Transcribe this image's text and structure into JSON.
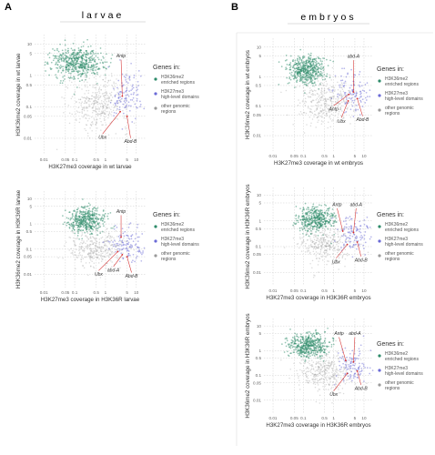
{
  "panels": [
    {
      "letter": "A",
      "title": "larvae"
    },
    {
      "letter": "B",
      "title": "embryos"
    }
  ],
  "legend": {
    "title": "Genes in:",
    "items": [
      {
        "label_lines": [
          "H3K36me2",
          "enriched regions"
        ],
        "color": "#2e8b6a"
      },
      {
        "label_lines": [
          "H3K27me3",
          "high-level domains"
        ],
        "color": "#6b6bd6"
      },
      {
        "label_lines": [
          "other genomic",
          "regions"
        ],
        "color": "#9a9a9a"
      }
    ]
  },
  "chart_data": [
    {
      "type": "scatter",
      "panel": "A",
      "plot": "larvae-wt",
      "xlabel": "H3K27me3 coverage in wt larvae",
      "ylabel": "H3K36me2 coverage in wt larvae",
      "log_scale": true,
      "grid": true,
      "legend_position": "right",
      "x_ticks": [
        "0.01",
        "0.05",
        "0.1",
        "0.5",
        "1",
        "5",
        "10"
      ],
      "y_ticks": [
        "10",
        "5",
        "1",
        "0.5",
        "0.1",
        "0.05",
        "0.01"
      ],
      "xlim": [
        0.005,
        20
      ],
      "ylim": [
        0.003,
        20
      ],
      "series": [
        {
          "name": "H3K36me2 enriched regions",
          "color": "#2e8b6a",
          "center": [
            0.12,
            2.6
          ],
          "spread": [
            0.42,
            0.25
          ],
          "count": 520
        },
        {
          "name": "H3K27me3 high-level domains",
          "color": "#6b6bd6",
          "center": [
            4.5,
            0.22
          ],
          "spread": [
            0.28,
            0.38
          ],
          "count": 110
        },
        {
          "name": "other genomic regions",
          "color": "#9a9a9a",
          "center": [
            0.6,
            0.13
          ],
          "spread": [
            0.5,
            0.42
          ],
          "count": 380
        }
      ],
      "annotations": [
        {
          "text": "Antp",
          "x": 3.5,
          "y": 0.22,
          "label_x": 3.2,
          "label_y": 3.5
        },
        {
          "text": "Ubx",
          "x": 3.0,
          "y": 0.07,
          "label_x": 0.8,
          "label_y": 0.012
        },
        {
          "text": "Abd-B",
          "x": 5.0,
          "y": 0.05,
          "label_x": 6.5,
          "label_y": 0.009
        }
      ]
    },
    {
      "type": "scatter",
      "panel": "A",
      "plot": "larvae-H3",
      "xlabel": "H3K27me3 coverage in H3K36R larvae",
      "ylabel": "H3K36me2 coverage in H3K36R larvae",
      "log_scale": true,
      "grid": true,
      "legend_position": "right",
      "x_ticks": [
        "0.01",
        "0.05",
        "0.1",
        "0.5",
        "1",
        "5",
        "10"
      ],
      "y_ticks": [
        "10",
        "5",
        "1",
        "0.5",
        "0.1",
        "0.05",
        "0.01"
      ],
      "xlim": [
        0.005,
        20
      ],
      "ylim": [
        0.003,
        20
      ],
      "series": [
        {
          "name": "H3K36me2 enriched regions",
          "color": "#2e8b6a",
          "center": [
            0.25,
            1.4
          ],
          "spread": [
            0.3,
            0.25
          ],
          "count": 420
        },
        {
          "name": "H3K27me3 high-level domains",
          "color": "#6b6bd6",
          "center": [
            5.0,
            0.15
          ],
          "spread": [
            0.28,
            0.32
          ],
          "count": 110
        },
        {
          "name": "other genomic regions",
          "color": "#9a9a9a",
          "center": [
            0.5,
            0.12
          ],
          "spread": [
            0.42,
            0.38
          ],
          "count": 360
        }
      ],
      "annotations": [
        {
          "text": "Antp",
          "x": 3.2,
          "y": 0.3,
          "label_x": 3.2,
          "label_y": 2.5
        },
        {
          "text": "Ubx",
          "x": 2.5,
          "y": 0.08,
          "label_x": 0.6,
          "label_y": 0.012
        },
        {
          "text": "abd-A",
          "x": 3.5,
          "y": 0.06,
          "label_x": 1.8,
          "label_y": 0.017
        },
        {
          "text": "Abd-B",
          "x": 5.0,
          "y": 0.05,
          "label_x": 7.0,
          "label_y": 0.01
        }
      ]
    },
    {
      "type": "scatter",
      "panel": "B",
      "plot": "embryos-wt",
      "xlabel": "H3K27me3 coverage in wt embryos",
      "ylabel": "H3K36me2 coverage in wt embryos",
      "log_scale": true,
      "grid": true,
      "legend_position": "right",
      "x_ticks": [
        "0.01",
        "0.05",
        "0.1",
        "0.5",
        "1",
        "5",
        "10"
      ],
      "y_ticks": [
        "10",
        "5",
        "1",
        "0.5",
        "0.1",
        "0.05",
        "0.01"
      ],
      "xlim": [
        0.005,
        20
      ],
      "ylim": [
        0.003,
        20
      ],
      "series": [
        {
          "name": "H3K36me2 enriched regions",
          "color": "#2e8b6a",
          "center": [
            0.12,
            1.6
          ],
          "spread": [
            0.3,
            0.25
          ],
          "count": 480
        },
        {
          "name": "H3K27me3 high-level domains",
          "color": "#6b6bd6",
          "center": [
            4.5,
            0.28
          ],
          "spread": [
            0.28,
            0.35
          ],
          "count": 110
        },
        {
          "name": "other genomic regions",
          "color": "#9a9a9a",
          "center": [
            0.5,
            0.14
          ],
          "spread": [
            0.45,
            0.4
          ],
          "count": 360
        }
      ],
      "annotations": [
        {
          "text": "abd-A",
          "x": 4.5,
          "y": 0.3,
          "label_x": 4.5,
          "label_y": 4.0
        },
        {
          "text": "Antp",
          "x": 3.2,
          "y": 0.25,
          "label_x": 1.0,
          "label_y": 0.09
        },
        {
          "text": "Ubx",
          "x": 3.0,
          "y": 0.15,
          "label_x": 1.8,
          "label_y": 0.035
        },
        {
          "text": "Abd-B",
          "x": 6.0,
          "y": 0.18,
          "label_x": 9.0,
          "label_y": 0.04
        }
      ]
    },
    {
      "type": "scatter",
      "panel": "B",
      "plot": "embryos-H3",
      "xlabel": "H3K27me3 coverage in H3K36R embryos",
      "ylabel": "H3K36me2 coverage in H3K36R embryos",
      "log_scale": true,
      "grid": true,
      "legend_position": "right",
      "x_ticks": [
        "0.01",
        "0.05",
        "0.1",
        "0.5",
        "1",
        "5",
        "10"
      ],
      "y_ticks": [
        "10",
        "5",
        "1",
        "0.5",
        "0.1",
        "0.05",
        "0.01"
      ],
      "xlim": [
        0.005,
        20
      ],
      "ylim": [
        0.003,
        20
      ],
      "series": [
        {
          "name": "H3K36me2 enriched regions",
          "color": "#2e8b6a",
          "center": [
            0.25,
            1.2
          ],
          "spread": [
            0.3,
            0.25
          ],
          "count": 420
        },
        {
          "name": "H3K27me3 high-level domains",
          "color": "#6b6bd6",
          "center": [
            5.0,
            0.3
          ],
          "spread": [
            0.28,
            0.32
          ],
          "count": 110
        },
        {
          "name": "other genomic regions",
          "color": "#9a9a9a",
          "center": [
            0.5,
            0.14
          ],
          "spread": [
            0.42,
            0.38
          ],
          "count": 360
        }
      ],
      "annotations": [
        {
          "text": "Antp",
          "x": 2.0,
          "y": 0.4,
          "label_x": 1.3,
          "label_y": 3.5
        },
        {
          "text": "abd-A",
          "x": 4.5,
          "y": 0.35,
          "label_x": 5.5,
          "label_y": 3.5
        },
        {
          "text": "Ubx",
          "x": 2.8,
          "y": 0.12,
          "label_x": 1.2,
          "label_y": 0.03
        },
        {
          "text": "Abd-B",
          "x": 6.0,
          "y": 0.15,
          "label_x": 8.0,
          "label_y": 0.035
        }
      ]
    },
    {
      "type": "scatter",
      "panel": "B",
      "plot": "embryos-H3-2",
      "xlabel": "H3K27me3 coverage in H3K36R embryos",
      "ylabel": "H3K36me2 coverage in H3K36R embryos",
      "log_scale": true,
      "grid": true,
      "legend_position": "right",
      "x_ticks": [
        "0.01",
        "0.05",
        "0.1",
        "0.5",
        "1",
        "5",
        "10"
      ],
      "y_ticks": [
        "10",
        "5",
        "1",
        "0.5",
        "0.1",
        "0.05",
        "0.01"
      ],
      "xlim": [
        0.005,
        20
      ],
      "ylim": [
        0.003,
        20
      ],
      "series": [
        {
          "name": "H3K36me2 enriched regions",
          "color": "#2e8b6a",
          "center": [
            0.15,
            1.6
          ],
          "spread": [
            0.32,
            0.24
          ],
          "count": 460
        },
        {
          "name": "H3K27me3 high-level domains",
          "color": "#6b6bd6",
          "center": [
            4.5,
            0.28
          ],
          "spread": [
            0.28,
            0.35
          ],
          "count": 110
        },
        {
          "name": "other genomic regions",
          "color": "#9a9a9a",
          "center": [
            0.5,
            0.14
          ],
          "spread": [
            0.45,
            0.4
          ],
          "count": 360
        }
      ],
      "annotations": [
        {
          "text": "Antp",
          "x": 2.5,
          "y": 0.4,
          "label_x": 1.5,
          "label_y": 4.0
        },
        {
          "text": "abd-A",
          "x": 4.5,
          "y": 0.35,
          "label_x": 5.0,
          "label_y": 4.0
        },
        {
          "text": "Ubx",
          "x": 2.8,
          "y": 0.12,
          "label_x": 1.0,
          "label_y": 0.02
        },
        {
          "text": "Abd-B",
          "x": 6.0,
          "y": 0.15,
          "label_x": 8.0,
          "label_y": 0.035
        }
      ]
    }
  ]
}
